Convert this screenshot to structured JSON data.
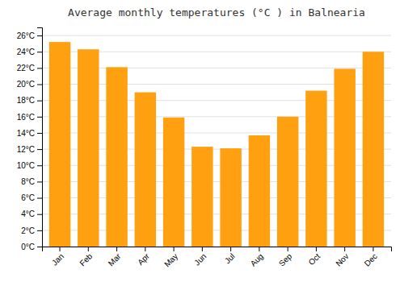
{
  "chart_data": {
    "type": "bar",
    "title": "Average monthly temperatures (°C ) in Balnearia",
    "categories": [
      "Jan",
      "Feb",
      "Mar",
      "Apr",
      "May",
      "Jun",
      "Jul",
      "Aug",
      "Sep",
      "Oct",
      "Nov",
      "Dec"
    ],
    "values": [
      25.2,
      24.3,
      22.1,
      19.0,
      15.9,
      12.3,
      12.1,
      13.7,
      16.0,
      19.2,
      21.9,
      24.0
    ],
    "color": "#FFA010",
    "ylim": [
      0,
      27
    ],
    "yticks": [
      {
        "value": 0,
        "label": "0°C"
      },
      {
        "value": 2,
        "label": "2°C"
      },
      {
        "value": 4,
        "label": "4°C"
      },
      {
        "value": 6,
        "label": "6°C"
      },
      {
        "value": 8,
        "label": "8°C"
      },
      {
        "value": 10,
        "label": "10°C"
      },
      {
        "value": 12,
        "label": "12°C"
      },
      {
        "value": 14,
        "label": "14°C"
      },
      {
        "value": 16,
        "label": "16°C"
      },
      {
        "value": 18,
        "label": "18°C"
      },
      {
        "value": 20,
        "label": "20°C"
      },
      {
        "value": 22,
        "label": "22°C"
      },
      {
        "value": 24,
        "label": "24°C"
      },
      {
        "value": 26,
        "label": "26°C"
      }
    ],
    "grid": true
  }
}
